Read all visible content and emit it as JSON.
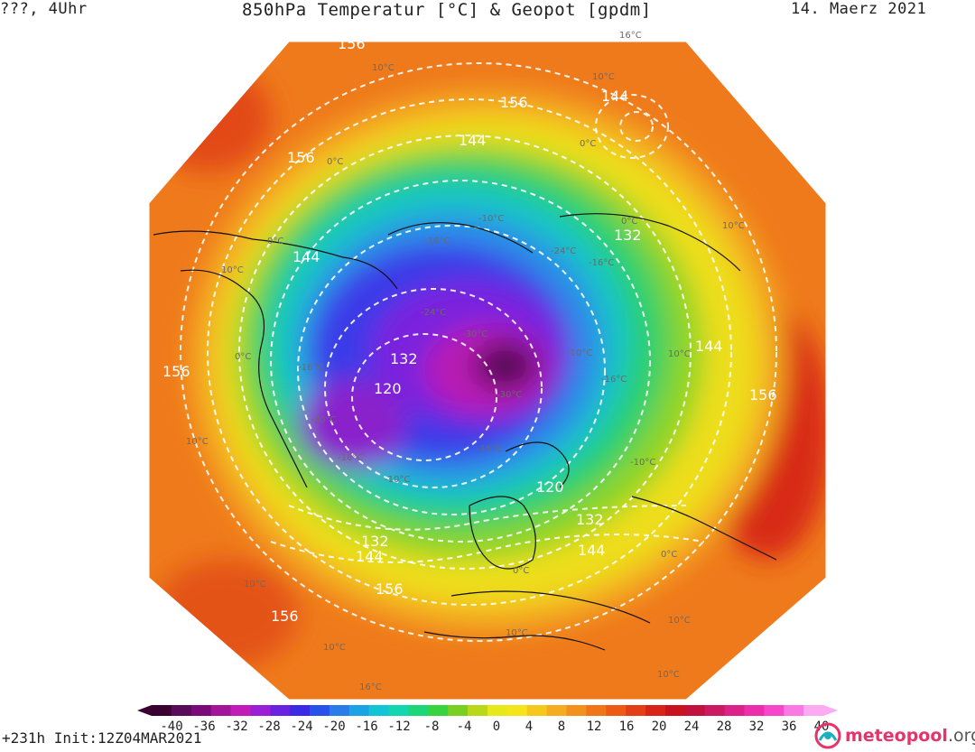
{
  "header": {
    "left": "???, 4Uhr",
    "title": "850hPa Temperatur [°C] & Geopot [gpdm]",
    "date": "14. Maerz 2021"
  },
  "footer": {
    "run_info": "+231h  Init:12Z04MAR2021",
    "logo_main": "meteopool",
    "logo_suffix": ".org"
  },
  "colorbar": {
    "ticks": [
      "-40",
      "-36",
      "-32",
      "-28",
      "-24",
      "-20",
      "-16",
      "-12",
      "-8",
      "-4",
      "0",
      "4",
      "8",
      "12",
      "16",
      "20",
      "24",
      "28",
      "32",
      "36",
      "40"
    ],
    "colors": [
      "#3a0030",
      "#5a0a5a",
      "#7a0a7a",
      "#a0159a",
      "#c21cb8",
      "#9a1fd6",
      "#6a22e0",
      "#3a2ae6",
      "#2850ea",
      "#2a7de8",
      "#1aa4e6",
      "#14c4d6",
      "#12d6b0",
      "#1cd67a",
      "#38d440",
      "#7ad020",
      "#b8d818",
      "#e6e81a",
      "#f4e41a",
      "#f6c81c",
      "#f6ac20",
      "#f4901e",
      "#f0741a",
      "#ec5a16",
      "#e43e16",
      "#d82418",
      "#c8121e",
      "#c0123c",
      "#cc1a62",
      "#dc2288",
      "#ec2eac",
      "#f646cc",
      "#fa78e4",
      "#fcaaf2"
    ]
  },
  "map_labels": {
    "geopot": [
      "156",
      "156",
      "144",
      "156",
      "144",
      "132",
      "144",
      "144",
      "156",
      "132",
      "120",
      "132",
      "120",
      "132",
      "144",
      "156",
      "156",
      "156",
      "144",
      "156",
      "132"
    ],
    "temp": [
      "16°C",
      "10°C",
      "10°C",
      "0°C",
      "0°C",
      "0°C",
      "-10°C",
      "0°C",
      "-16°C",
      "-24°C",
      "-16°C",
      "10°C",
      "-24°C",
      "-30°C",
      "-16°C",
      "-30°C",
      "-10°C",
      "10°C",
      "-16°C",
      "-30°C",
      "-10°C",
      "-10°C",
      "-16°C",
      "10°C",
      "10°C",
      "0°C",
      "0°C",
      "10°C",
      "10°C",
      "10°C",
      "0°C",
      "10°C",
      "16°C",
      "-16°C",
      "10°C"
    ]
  }
}
